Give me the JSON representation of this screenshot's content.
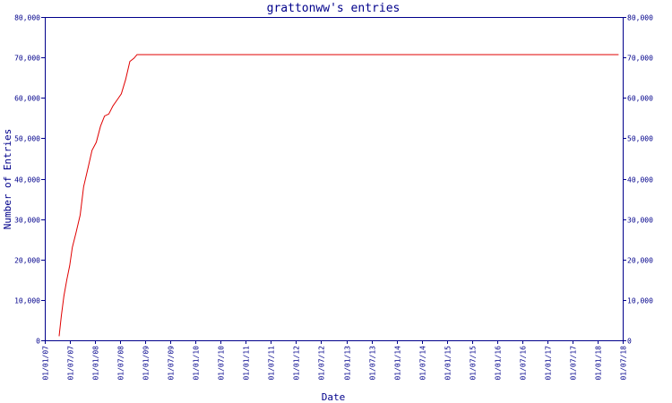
{
  "chart_data": {
    "type": "line",
    "title": "grattonww's entries",
    "xlabel": "Date",
    "ylabel": "Number of Entries",
    "grid": false,
    "legend": "none",
    "x_tick_labels": [
      "01/01/07",
      "01/07/07",
      "01/01/08",
      "01/07/08",
      "01/01/09",
      "01/07/09",
      "01/01/10",
      "01/07/10",
      "01/01/11",
      "01/07/11",
      "01/01/12",
      "01/07/12",
      "01/01/13",
      "01/07/13",
      "01/01/14",
      "01/07/14",
      "01/01/15",
      "01/07/15",
      "01/01/16",
      "01/07/16",
      "01/01/17",
      "01/07/17",
      "01/01/18",
      "01/07/18"
    ],
    "y_ticks": [
      0,
      10000,
      20000,
      30000,
      40000,
      50000,
      60000,
      70000,
      80000
    ],
    "y_tick_labels": [
      "0",
      "10,000",
      "20,000",
      "30,000",
      "40,000",
      "50,000",
      "60,000",
      "70,000",
      "80,000"
    ],
    "xlim": [
      "2007-01-01",
      "2018-07-01"
    ],
    "ylim": [
      0,
      80000
    ],
    "series": [
      {
        "color": "#e00000",
        "points": [
          [
            "2007-04-15",
            1000
          ],
          [
            "2007-05-01",
            6000
          ],
          [
            "2007-05-20",
            11000
          ],
          [
            "2007-06-10",
            15000
          ],
          [
            "2007-07-01",
            18500
          ],
          [
            "2007-07-20",
            23000
          ],
          [
            "2007-08-15",
            26500
          ],
          [
            "2007-09-15",
            31000
          ],
          [
            "2007-10-10",
            38000
          ],
          [
            "2007-11-10",
            42500
          ],
          [
            "2007-12-10",
            47000
          ],
          [
            "2008-01-10",
            49000
          ],
          [
            "2008-02-10",
            53000
          ],
          [
            "2008-03-10",
            55500
          ],
          [
            "2008-04-10",
            56000
          ],
          [
            "2008-05-10",
            58000
          ],
          [
            "2008-06-10",
            59500
          ],
          [
            "2008-07-10",
            61000
          ],
          [
            "2008-08-10",
            64500
          ],
          [
            "2008-09-10",
            69000
          ],
          [
            "2008-10-10",
            69800
          ],
          [
            "2008-11-01",
            70700
          ],
          [
            "2009-06-01",
            70700
          ],
          [
            "2012-01-01",
            70700
          ],
          [
            "2015-01-01",
            70700
          ],
          [
            "2018-06-01",
            70700
          ]
        ]
      }
    ]
  }
}
